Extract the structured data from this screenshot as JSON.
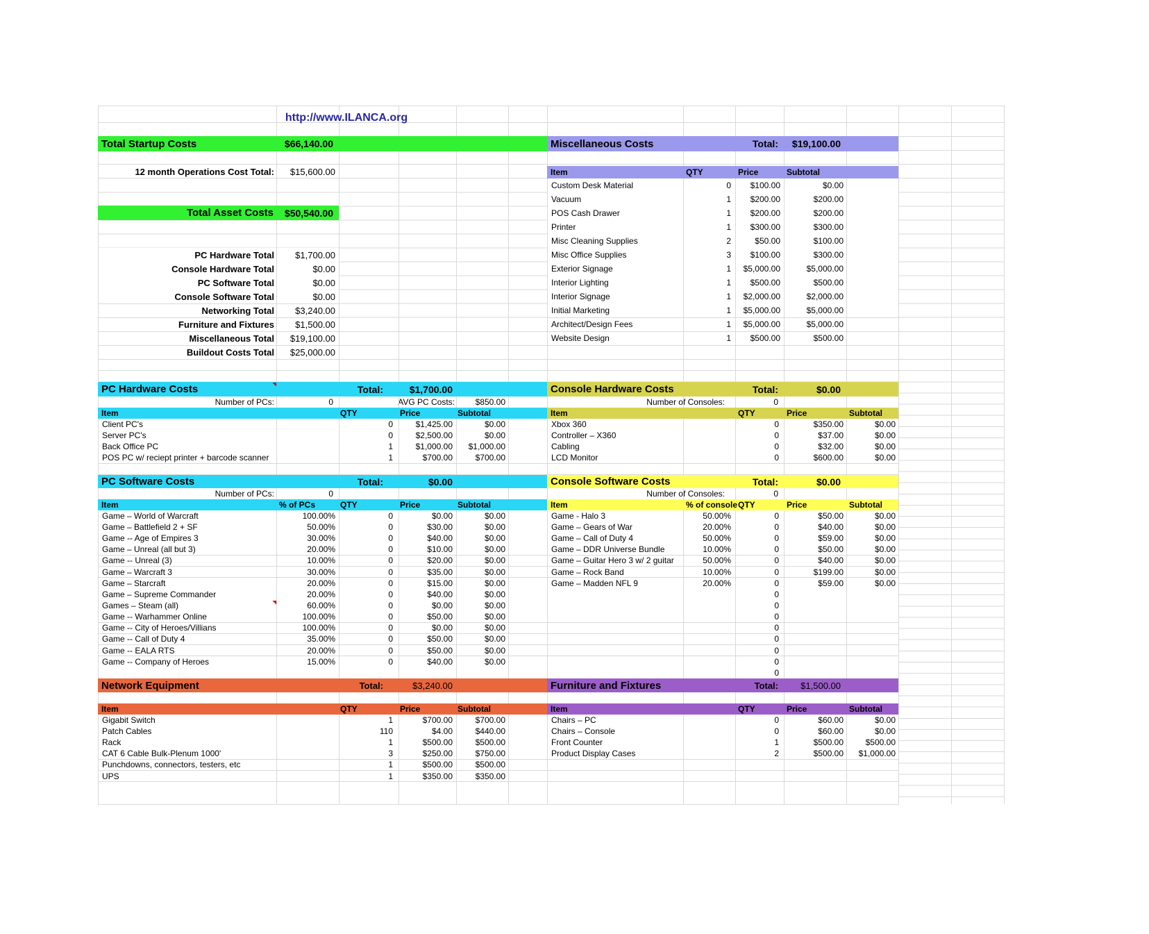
{
  "page": {
    "url": "http://www.ILANCA.org"
  },
  "summary": {
    "startup_label": "Total Startup Costs",
    "startup_value": "$66,140.00",
    "operations_label": "12 month Operations Cost Total:",
    "operations_value": "$15,600.00",
    "asset_label": "Total Asset Costs",
    "asset_value": "$50,540.00",
    "totals": [
      {
        "label": "PC Hardware Total",
        "value": "$1,700.00"
      },
      {
        "label": "Console Hardware Total",
        "value": "$0.00"
      },
      {
        "label": "PC Software Total",
        "value": "$0.00"
      },
      {
        "label": "Console Software Total",
        "value": "$0.00"
      },
      {
        "label": "Networking Total",
        "value": "$3,240.00"
      },
      {
        "label": "Furniture and Fixtures",
        "value": "$1,500.00"
      },
      {
        "label": "Miscellaneous Total",
        "value": "$19,100.00"
      },
      {
        "label": "Buildout Costs Total",
        "value": "$25,000.00"
      }
    ]
  },
  "sections": {
    "misc": {
      "title": "Miscellaneous Costs",
      "total_label": "Total:",
      "total": "$19,100.00",
      "headers": [
        "Item",
        "QTY",
        "Price",
        "Subtotal"
      ],
      "rows": [
        [
          "Custom Desk Material",
          "0",
          "$100.00",
          "$0.00"
        ],
        [
          "Vacuum",
          "1",
          "$200.00",
          "$200.00"
        ],
        [
          "POS Cash Drawer",
          "1",
          "$200.00",
          "$200.00"
        ],
        [
          "Printer",
          "1",
          "$300.00",
          "$300.00"
        ],
        [
          "Misc Cleaning Supplies",
          "2",
          "$50.00",
          "$100.00"
        ],
        [
          "Misc Office Supplies",
          "3",
          "$100.00",
          "$300.00"
        ],
        [
          "Exterior Signage",
          "1",
          "$5,000.00",
          "$5,000.00"
        ],
        [
          "Interior Lighting",
          "1",
          "$500.00",
          "$500.00"
        ],
        [
          "Interior Signage",
          "1",
          "$2,000.00",
          "$2,000.00"
        ],
        [
          "Initial Marketing",
          "1",
          "$5,000.00",
          "$5,000.00"
        ],
        [
          "Architect/Design Fees",
          "1",
          "$5,000.00",
          "$5,000.00"
        ],
        [
          "Website Design",
          "1",
          "$500.00",
          "$500.00"
        ]
      ]
    },
    "pc_hw": {
      "title": "PC Hardware Costs",
      "total_label": "Total:",
      "total": "$1,700.00",
      "num_label": "Number of PCs:",
      "num": "0",
      "avg_label": "AVG PC Costs:",
      "avg": "$850.00",
      "headers": [
        "Item",
        "QTY",
        "Price",
        "Subtotal"
      ],
      "rows": [
        [
          "Client PC's",
          "0",
          "$1,425.00",
          "$0.00"
        ],
        [
          "Server PC's",
          "0",
          "$2,500.00",
          "$0.00"
        ],
        [
          "Back Office PC",
          "1",
          "$1,000.00",
          "$1,000.00"
        ],
        [
          "POS PC w/ reciept printer + barcode scanner",
          "1",
          "$700.00",
          "$700.00"
        ]
      ]
    },
    "console_hw": {
      "title": "Console Hardware Costs",
      "total_label": "Total:",
      "total": "$0.00",
      "num_label": "Number of Consoles:",
      "num": "0",
      "headers": [
        "Item",
        "QTY",
        "Price",
        "Subtotal"
      ],
      "rows": [
        [
          "Xbox 360",
          "0",
          "$350.00",
          "$0.00"
        ],
        [
          "Controller – X360",
          "0",
          "$37.00",
          "$0.00"
        ],
        [
          "Cabling",
          "0",
          "$32.00",
          "$0.00"
        ],
        [
          "LCD Monitor",
          "0",
          "$600.00",
          "$0.00"
        ]
      ]
    },
    "pc_sw": {
      "title": "PC Software Costs",
      "total_label": "Total:",
      "total": "$0.00",
      "num_label": "Number of PCs:",
      "num": "0",
      "headers": [
        "Item",
        "% of PCs",
        "QTY",
        "Price",
        "Subtotal"
      ],
      "rows": [
        [
          "Game – World of Warcraft",
          "100.00%",
          "0",
          "$0.00",
          "$0.00"
        ],
        [
          "Game – Battlefield 2 + SF",
          "50.00%",
          "0",
          "$30.00",
          "$0.00"
        ],
        [
          "Game -- Age of Empires 3",
          "30.00%",
          "0",
          "$40.00",
          "$0.00"
        ],
        [
          "Game – Unreal (all but 3)",
          "20.00%",
          "0",
          "$10.00",
          "$0.00"
        ],
        [
          "Game -- Unreal (3)",
          "10.00%",
          "0",
          "$20.00",
          "$0.00"
        ],
        [
          "Game – Warcraft 3",
          "30.00%",
          "0",
          "$35.00",
          "$0.00"
        ],
        [
          "Game – Starcraft",
          "20.00%",
          "0",
          "$15.00",
          "$0.00"
        ],
        [
          "Game – Supreme Commander",
          "20.00%",
          "0",
          "$40.00",
          "$0.00"
        ],
        [
          "Games – Steam (all)",
          "60.00%",
          "0",
          "$0.00",
          "$0.00"
        ],
        [
          "Game -- Warhammer Online",
          "100.00%",
          "0",
          "$50.00",
          "$0.00"
        ],
        [
          "Game -- City of Heroes/Villians",
          "100.00%",
          "0",
          "$0.00",
          "$0.00"
        ],
        [
          "Game -- Call of Duty 4",
          "35.00%",
          "0",
          "$50.00",
          "$0.00"
        ],
        [
          "Game -- EALA RTS",
          "20.00%",
          "0",
          "$50.00",
          "$0.00"
        ],
        [
          "Game -- Company of Heroes",
          "15.00%",
          "0",
          "$40.00",
          "$0.00"
        ]
      ]
    },
    "console_sw": {
      "title": "Console Software Costs",
      "total_label": "Total:",
      "total": "$0.00",
      "num_label": "Number of Consoles:",
      "num": "0",
      "headers": [
        "Item",
        "% of console",
        "QTY",
        "Price",
        "Subtotal"
      ],
      "rows": [
        [
          "Game - Halo 3",
          "50.00%",
          "0",
          "$50.00",
          "$0.00"
        ],
        [
          "Game – Gears of War",
          "20.00%",
          "0",
          "$40.00",
          "$0.00"
        ],
        [
          "Game – Call of Duty 4",
          "50.00%",
          "0",
          "$59.00",
          "$0.00"
        ],
        [
          "Game – DDR Universe Bundle",
          "10.00%",
          "0",
          "$50.00",
          "$0.00"
        ],
        [
          "Game – Guitar Hero 3 w/ 2 guitar",
          "50.00%",
          "0",
          "$40.00",
          "$0.00"
        ],
        [
          "Game – Rock Band",
          "10.00%",
          "0",
          "$199.00",
          "$0.00"
        ],
        [
          "Game – Madden NFL 9",
          "20.00%",
          "0",
          "$59.00",
          "$0.00"
        ]
      ],
      "filler_qty": [
        "0",
        "0",
        "0",
        "0",
        "0",
        "0",
        "0",
        "0"
      ]
    },
    "network": {
      "title": "Network Equipment",
      "total_label": "Total:",
      "total": "$3,240.00",
      "headers": [
        "Item",
        "QTY",
        "Price",
        "Subtotal"
      ],
      "rows": [
        [
          "Gigabit Switch",
          "1",
          "$700.00",
          "$700.00"
        ],
        [
          "Patch Cables",
          "110",
          "$4.00",
          "$440.00"
        ],
        [
          "Rack",
          "1",
          "$500.00",
          "$500.00"
        ],
        [
          "CAT 6 Cable Bulk-Plenum 1000'",
          "3",
          "$250.00",
          "$750.00"
        ],
        [
          "Punchdowns, connectors, testers, etc",
          "1",
          "$500.00",
          "$500.00"
        ],
        [
          "UPS",
          "1",
          "$350.00",
          "$350.00"
        ]
      ]
    },
    "furniture": {
      "title": "Furniture and Fixtures",
      "total_label": "Total:",
      "total": "$1,500.00",
      "headers": [
        "Item",
        "QTY",
        "Price",
        "Subtotal"
      ],
      "rows": [
        [
          "Chairs – PC",
          "0",
          "$60.00",
          "$0.00"
        ],
        [
          "Chairs – Console",
          "0",
          "$60.00",
          "$0.00"
        ],
        [
          "Front Counter",
          "1",
          "$500.00",
          "$500.00"
        ],
        [
          "Product Display Cases",
          "2",
          "$500.00",
          "$1,000.00"
        ]
      ]
    }
  },
  "colors": {
    "startup_banner": "#32f032",
    "misc_banner": "#9b99eb",
    "cyan_banner": "#29d6f5",
    "console_hw_banner": "#d6d44e",
    "console_sw_banner": "#ffff55",
    "network_banner": "#e8673c",
    "furniture_banner": "#9b5ec9",
    "url_text": "#2727a3",
    "comment": "#cc0000"
  }
}
